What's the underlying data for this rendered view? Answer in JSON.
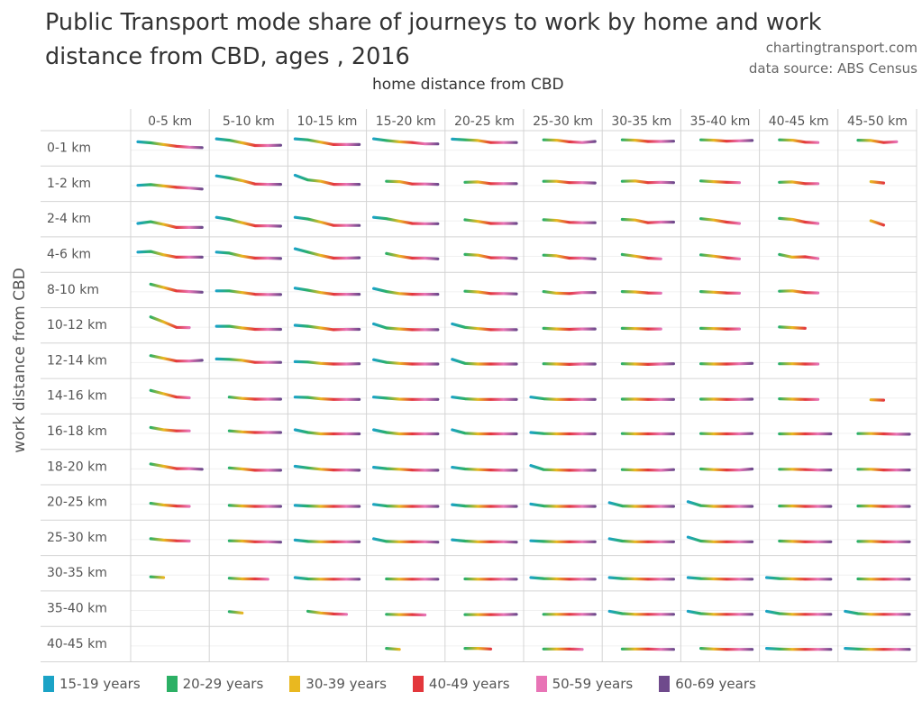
{
  "chart_data": {
    "type": "line",
    "title": "Public Transport mode share of journeys to work by home and work distance from CBD, ages , 2016",
    "credits": [
      "chartingtransport.com",
      "data source: ABS Census"
    ],
    "xlabel": "home distance from CBD",
    "ylabel": "work distance from CBD",
    "grid": true,
    "legend_position": "bottom",
    "ylim": [
      0,
      1
    ],
    "value_units": "mode share (fraction, estimated)",
    "home_bands": [
      "0-5 km",
      "5-10 km",
      "10-15 km",
      "15-20 km",
      "20-25 km",
      "25-30 km",
      "30-35 km",
      "35-40 km",
      "40-45 km",
      "45-50 km"
    ],
    "work_bands": [
      "0-1 km",
      "1-2 km",
      "2-4 km",
      "4-6 km",
      "8-10 km",
      "10-12 km",
      "12-14 km",
      "14-16 km",
      "16-18 km",
      "18-20 km",
      "20-25 km",
      "25-30 km",
      "30-35 km",
      "35-40 km",
      "40-45 km"
    ],
    "series": [
      {
        "name": "15-19 years",
        "color": "#1ba3c6"
      },
      {
        "name": "20-29 years",
        "color": "#2cb065"
      },
      {
        "name": "30-39 years",
        "color": "#e9b820"
      },
      {
        "name": "40-49 years",
        "color": "#e3373c"
      },
      {
        "name": "50-59 years",
        "color": "#e874b6"
      },
      {
        "name": "60-69 years",
        "color": "#6f4a8c"
      }
    ],
    "cells": [
      [
        [
          0.72,
          0.69,
          0.64,
          0.59,
          0.56,
          0.55
        ],
        [
          0.81,
          0.77,
          0.69,
          0.61,
          0.61,
          0.62
        ],
        [
          0.81,
          0.78,
          0.71,
          0.64,
          0.64,
          0.64
        ],
        [
          0.81,
          0.76,
          0.72,
          0.7,
          0.66,
          0.66
        ],
        [
          0.8,
          0.78,
          0.76,
          0.7,
          0.7,
          0.7
        ],
        [
          null,
          0.78,
          0.77,
          0.72,
          0.7,
          0.73
        ],
        [
          null,
          0.78,
          0.77,
          0.73,
          0.73,
          0.74
        ],
        [
          null,
          0.78,
          0.77,
          0.74,
          0.75,
          0.76
        ],
        [
          null,
          0.78,
          0.77,
          0.71,
          0.7,
          null
        ],
        [
          null,
          0.77,
          0.76,
          0.7,
          0.72,
          null
        ]
      ],
      [
        [
          0.48,
          0.5,
          0.46,
          0.42,
          0.4,
          0.37
        ],
        [
          0.76,
          0.7,
          0.62,
          0.52,
          0.51,
          0.51
        ],
        [
          0.78,
          0.64,
          0.6,
          0.51,
          0.51,
          0.51
        ],
        [
          null,
          0.6,
          0.59,
          0.52,
          0.52,
          0.51
        ],
        [
          null,
          0.57,
          0.58,
          0.53,
          0.53,
          0.53
        ],
        [
          null,
          0.6,
          0.6,
          0.56,
          0.56,
          0.55
        ],
        [
          null,
          0.6,
          0.61,
          0.56,
          0.57,
          0.56
        ],
        [
          null,
          0.61,
          0.59,
          0.57,
          0.56,
          null
        ],
        [
          null,
          0.57,
          0.58,
          0.53,
          0.53,
          null
        ],
        [
          null,
          null,
          0.59,
          0.55,
          null,
          null
        ]
      ],
      [
        [
          0.4,
          0.45,
          0.37,
          0.28,
          0.28,
          0.28
        ],
        [
          0.58,
          0.52,
          0.42,
          0.33,
          0.33,
          0.32
        ],
        [
          0.58,
          0.53,
          0.44,
          0.34,
          0.34,
          0.34
        ],
        [
          0.58,
          0.54,
          0.47,
          0.4,
          0.39,
          0.39
        ],
        [
          null,
          0.51,
          0.46,
          0.4,
          0.4,
          0.4
        ],
        [
          null,
          0.51,
          0.49,
          0.43,
          0.42,
          0.42
        ],
        [
          null,
          0.52,
          0.5,
          0.42,
          0.44,
          0.44
        ],
        [
          null,
          0.54,
          0.5,
          0.44,
          0.4,
          null
        ],
        [
          null,
          0.55,
          0.52,
          0.44,
          0.4,
          null
        ],
        [
          null,
          null,
          0.48,
          0.35,
          null,
          null
        ]
      ],
      [
        [
          0.6,
          0.62,
          0.52,
          0.45,
          0.45,
          0.45
        ],
        [
          0.6,
          0.57,
          0.48,
          0.42,
          0.42,
          0.41
        ],
        [
          0.7,
          0.6,
          0.5,
          0.42,
          0.42,
          0.43
        ],
        [
          null,
          0.56,
          0.48,
          0.42,
          0.42,
          0.4
        ],
        [
          null,
          0.53,
          0.51,
          0.43,
          0.43,
          0.41
        ],
        [
          null,
          0.51,
          0.49,
          0.42,
          0.42,
          0.4
        ],
        [
          null,
          0.53,
          0.48,
          0.42,
          0.4,
          null
        ],
        [
          null,
          0.52,
          0.48,
          0.43,
          0.4,
          null
        ],
        [
          null,
          0.53,
          0.45,
          0.46,
          0.41,
          null
        ],
        [
          null,
          null,
          null,
          null,
          null,
          null
        ]
      ],
      [
        [
          null,
          0.7,
          0.6,
          0.5,
          0.48,
          0.46
        ],
        [
          0.5,
          0.5,
          0.45,
          0.4,
          0.39,
          0.39
        ],
        [
          0.58,
          0.52,
          0.45,
          0.4,
          0.4,
          0.4
        ],
        [
          0.57,
          0.48,
          0.42,
          0.4,
          0.4,
          0.4
        ],
        [
          null,
          0.49,
          0.47,
          0.42,
          0.42,
          0.41
        ],
        [
          null,
          0.48,
          0.43,
          0.42,
          0.45,
          0.45
        ],
        [
          null,
          0.48,
          0.47,
          0.44,
          0.43,
          null
        ],
        [
          null,
          0.48,
          0.46,
          0.44,
          0.43,
          null
        ],
        [
          null,
          0.49,
          0.5,
          0.45,
          0.44,
          null
        ],
        [
          null,
          null,
          null,
          null,
          null,
          null
        ]
      ],
      [
        [
          null,
          0.78,
          0.63,
          0.47,
          0.46,
          null
        ],
        [
          0.5,
          0.5,
          0.45,
          0.41,
          0.41,
          0.41
        ],
        [
          0.53,
          0.5,
          0.45,
          0.4,
          0.41,
          0.41
        ],
        [
          0.57,
          0.45,
          0.42,
          0.4,
          0.4,
          0.4
        ],
        [
          0.57,
          0.47,
          0.43,
          0.4,
          0.4,
          0.4
        ],
        [
          null,
          0.44,
          0.42,
          0.41,
          0.42,
          0.42
        ],
        [
          null,
          0.44,
          0.43,
          0.42,
          0.42,
          null
        ],
        [
          null,
          0.44,
          0.43,
          0.42,
          0.42,
          null
        ],
        [
          null,
          0.48,
          0.46,
          0.44,
          null,
          null
        ],
        [
          null,
          null,
          null,
          null,
          null,
          null
        ]
      ],
      [
        [
          null,
          0.68,
          0.6,
          0.52,
          0.52,
          0.54
        ],
        [
          0.58,
          0.57,
          0.54,
          0.48,
          0.48,
          0.48
        ],
        [
          0.5,
          0.49,
          0.45,
          0.43,
          0.43,
          0.44
        ],
        [
          0.56,
          0.48,
          0.45,
          0.43,
          0.43,
          0.43
        ],
        [
          0.57,
          0.45,
          0.43,
          0.43,
          0.43,
          0.43
        ],
        [
          null,
          0.44,
          0.43,
          0.42,
          0.43,
          0.43
        ],
        [
          null,
          0.44,
          0.43,
          0.42,
          0.43,
          0.44
        ],
        [
          null,
          0.44,
          0.43,
          0.43,
          0.44,
          0.45
        ],
        [
          null,
          0.44,
          0.44,
          0.43,
          0.43,
          null
        ],
        [
          null,
          null,
          null,
          null,
          null,
          null
        ]
      ],
      [
        [
          null,
          0.7,
          0.6,
          0.5,
          0.48,
          null
        ],
        [
          null,
          0.5,
          0.46,
          0.44,
          0.44,
          0.44
        ],
        [
          0.5,
          0.49,
          0.45,
          0.43,
          0.43,
          0.43
        ],
        [
          0.5,
          0.47,
          0.44,
          0.43,
          0.43,
          0.43
        ],
        [
          0.5,
          0.45,
          0.43,
          0.43,
          0.43,
          0.43
        ],
        [
          0.5,
          0.45,
          0.43,
          0.43,
          0.43,
          0.43
        ],
        [
          null,
          0.44,
          0.44,
          0.43,
          0.43,
          0.43
        ],
        [
          null,
          0.44,
          0.44,
          0.43,
          0.43,
          0.44
        ],
        [
          null,
          0.45,
          0.44,
          0.43,
          0.43,
          null
        ],
        [
          null,
          null,
          0.42,
          0.41,
          null,
          null
        ]
      ],
      [
        [
          null,
          0.65,
          0.58,
          0.55,
          0.55,
          null
        ],
        [
          null,
          0.55,
          0.52,
          0.5,
          0.5,
          0.5
        ],
        [
          0.58,
          0.5,
          0.46,
          0.46,
          0.46,
          0.46
        ],
        [
          0.58,
          0.5,
          0.46,
          0.46,
          0.46,
          0.46
        ],
        [
          0.58,
          0.48,
          0.46,
          0.46,
          0.46,
          0.46
        ],
        [
          0.5,
          0.47,
          0.46,
          0.46,
          0.46,
          0.46
        ],
        [
          null,
          0.47,
          0.46,
          0.46,
          0.46,
          0.46
        ],
        [
          null,
          0.47,
          0.46,
          0.46,
          0.46,
          0.47
        ],
        [
          null,
          0.46,
          0.46,
          0.46,
          0.46,
          0.46
        ],
        [
          null,
          0.47,
          0.47,
          0.46,
          0.45,
          0.45
        ]
      ],
      [
        [
          null,
          0.62,
          0.55,
          0.48,
          0.48,
          0.46
        ],
        [
          null,
          0.5,
          0.47,
          0.43,
          0.43,
          0.43
        ],
        [
          0.55,
          0.5,
          0.46,
          0.44,
          0.44,
          0.43
        ],
        [
          0.52,
          0.48,
          0.46,
          0.44,
          0.43,
          0.43
        ],
        [
          0.52,
          0.47,
          0.45,
          0.44,
          0.43,
          0.43
        ],
        [
          0.57,
          0.45,
          0.44,
          0.43,
          0.43,
          0.43
        ],
        [
          null,
          0.45,
          0.44,
          0.44,
          0.43,
          0.45
        ],
        [
          null,
          0.47,
          0.45,
          0.44,
          0.44,
          0.47
        ],
        [
          null,
          0.46,
          0.46,
          0.45,
          0.44,
          0.44
        ],
        [
          null,
          0.46,
          0.46,
          0.44,
          0.44,
          0.44
        ]
      ],
      [
        [
          null,
          0.5,
          0.45,
          0.42,
          0.41,
          null
        ],
        [
          null,
          0.44,
          0.42,
          0.41,
          0.41,
          0.41
        ],
        [
          0.44,
          0.42,
          0.41,
          0.41,
          0.41,
          0.41
        ],
        [
          0.47,
          0.42,
          0.41,
          0.41,
          0.41,
          0.41
        ],
        [
          0.46,
          0.42,
          0.41,
          0.41,
          0.41,
          0.41
        ],
        [
          0.48,
          0.42,
          0.41,
          0.41,
          0.41,
          0.41
        ],
        [
          0.52,
          0.42,
          0.41,
          0.41,
          0.41,
          0.41
        ],
        [
          0.55,
          0.43,
          0.41,
          0.41,
          0.41,
          0.41
        ],
        [
          null,
          0.42,
          0.42,
          0.41,
          0.41,
          0.41
        ],
        [
          null,
          0.42,
          0.42,
          0.41,
          0.41,
          0.41
        ]
      ],
      [
        [
          null,
          0.5,
          0.46,
          0.44,
          0.43,
          null
        ],
        [
          null,
          0.44,
          0.43,
          0.41,
          0.41,
          0.4
        ],
        [
          0.46,
          0.42,
          0.41,
          0.41,
          0.41,
          0.41
        ],
        [
          0.5,
          0.42,
          0.41,
          0.41,
          0.41,
          0.4
        ],
        [
          0.47,
          0.43,
          0.41,
          0.41,
          0.41,
          0.4
        ],
        [
          0.44,
          0.42,
          0.41,
          0.41,
          0.41,
          0.41
        ],
        [
          0.5,
          0.43,
          0.41,
          0.41,
          0.41,
          0.41
        ],
        [
          0.55,
          0.43,
          0.41,
          0.41,
          0.41,
          0.41
        ],
        [
          null,
          0.43,
          0.42,
          0.41,
          0.41,
          0.41
        ],
        [
          null,
          0.42,
          0.42,
          0.41,
          0.41,
          0.41
        ]
      ],
      [
        [
          null,
          0.42,
          0.4,
          null,
          null,
          null
        ],
        [
          null,
          0.38,
          0.36,
          0.36,
          0.35,
          null
        ],
        [
          0.4,
          0.36,
          0.35,
          0.35,
          0.35,
          0.35
        ],
        [
          null,
          0.36,
          0.35,
          0.35,
          0.35,
          0.35
        ],
        [
          null,
          0.36,
          0.35,
          0.35,
          0.35,
          0.35
        ],
        [
          0.4,
          0.37,
          0.36,
          0.35,
          0.35,
          0.35
        ],
        [
          0.4,
          0.37,
          0.36,
          0.35,
          0.35,
          0.35
        ],
        [
          0.4,
          0.37,
          0.36,
          0.35,
          0.35,
          0.35
        ],
        [
          0.4,
          0.37,
          0.36,
          0.35,
          0.35,
          0.35
        ],
        [
          null,
          0.36,
          0.35,
          0.35,
          0.35,
          0.35
        ]
      ],
      [
        [
          null,
          null,
          null,
          null,
          null,
          null
        ],
        [
          null,
          0.44,
          0.4,
          null,
          null,
          null
        ],
        [
          null,
          0.45,
          0.4,
          0.37,
          0.36,
          null
        ],
        [
          null,
          0.36,
          0.35,
          0.35,
          0.34,
          null
        ],
        [
          null,
          0.35,
          0.35,
          0.35,
          0.35,
          0.36
        ],
        [
          null,
          0.36,
          0.36,
          0.36,
          0.36,
          0.36
        ],
        [
          0.45,
          0.38,
          0.36,
          0.36,
          0.36,
          0.36
        ],
        [
          0.45,
          0.38,
          0.36,
          0.36,
          0.36,
          0.36
        ],
        [
          0.45,
          0.38,
          0.36,
          0.36,
          0.36,
          0.36
        ],
        [
          0.45,
          0.38,
          0.36,
          0.36,
          0.36,
          0.36
        ]
      ],
      [
        [
          null,
          null,
          null,
          null,
          null,
          null
        ],
        [
          null,
          null,
          null,
          null,
          null,
          null
        ],
        [
          null,
          null,
          null,
          null,
          null,
          null
        ],
        [
          null,
          0.4,
          0.37,
          null,
          null,
          null
        ],
        [
          null,
          0.4,
          0.4,
          0.38,
          null,
          null
        ],
        [
          null,
          0.38,
          0.38,
          0.38,
          0.37,
          null
        ],
        [
          null,
          0.38,
          0.38,
          0.38,
          0.37,
          0.37
        ],
        [
          null,
          0.4,
          0.38,
          0.37,
          0.37,
          0.37
        ],
        [
          0.4,
          0.38,
          0.37,
          0.37,
          0.37,
          0.37
        ],
        [
          0.4,
          0.38,
          0.37,
          0.37,
          0.37,
          0.37
        ]
      ]
    ]
  },
  "legend": [
    {
      "label": "15-19 years",
      "color": "#1ba3c6"
    },
    {
      "label": "20-29 years",
      "color": "#2cb065"
    },
    {
      "label": "30-39 years",
      "color": "#e9b820"
    },
    {
      "label": "40-49 years",
      "color": "#e3373c"
    },
    {
      "label": "50-59 years",
      "color": "#e874b6"
    },
    {
      "label": "60-69 years",
      "color": "#6f4a8c"
    }
  ]
}
